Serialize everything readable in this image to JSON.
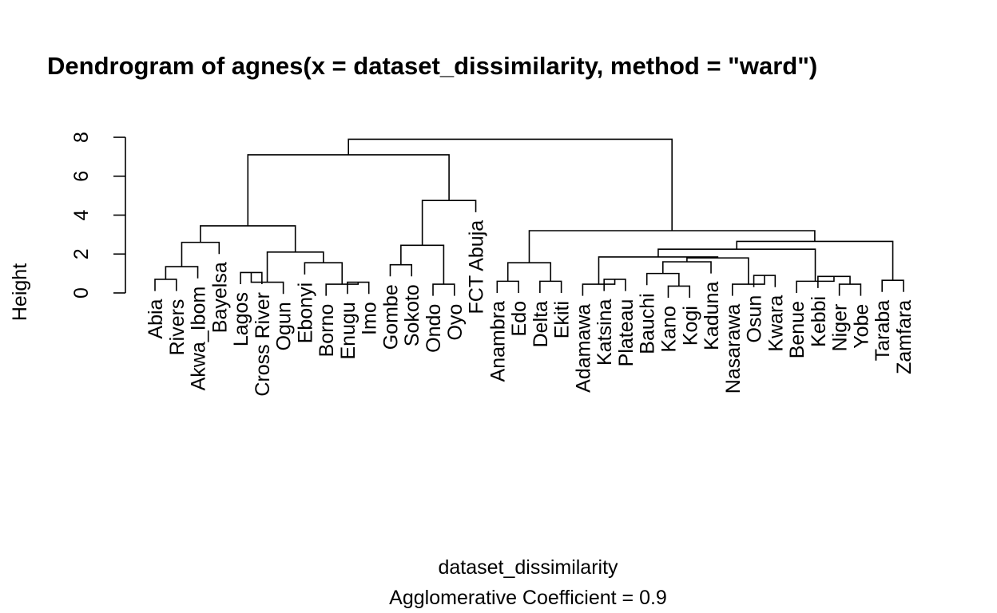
{
  "chart_data": {
    "type": "dendrogram",
    "title": "Dendrogram of  agnes(x = dataset_dissimilarity, method = \"ward\")",
    "xlabel": "dataset_dissimilarity",
    "sub": "Agglomerative Coefficient =  0.9",
    "ylabel": "Height",
    "ylim": [
      0,
      8
    ],
    "yticks": [
      "0",
      "2",
      "4",
      "6",
      "8"
    ],
    "leaves": [
      "Abia",
      "Rivers",
      "Akwa_Ibom",
      "Bayelsa",
      "Lagos",
      "Cross River",
      "Ogun",
      "Ebonyi",
      "Borno",
      "Enugu",
      "Imo",
      "Gombe",
      "Sokoto",
      "Ondo",
      "Oyo",
      "FCT Abuja",
      "Anambra",
      "Edo",
      "Delta",
      "Ekiti",
      "Adamawa",
      "Katsina",
      "Plateau",
      "Bauchi",
      "Kano",
      "Kogi",
      "Kaduna",
      "Nasarawa",
      "Osun",
      "Kwara",
      "Benue",
      "Kebbi",
      "Niger",
      "Yobe",
      "Taraba",
      "Zamfara"
    ],
    "merges": [
      {
        "a": [
          "leaf",
          0
        ],
        "b": [
          "leaf",
          1
        ],
        "h": 0.7
      },
      {
        "a": [
          "node",
          0
        ],
        "b": [
          "leaf",
          2
        ],
        "h": 1.35
      },
      {
        "a": [
          "node",
          1
        ],
        "b": [
          "leaf",
          3
        ],
        "h": 2.6
      },
      {
        "a": [
          "leaf",
          4
        ],
        "b": [
          "leaf",
          5
        ],
        "h": 1.05
      },
      {
        "a": [
          "node",
          3
        ],
        "b": [
          "leaf",
          6
        ],
        "h": 0.55
      },
      {
        "a": [
          "leaf",
          9
        ],
        "b": [
          "leaf",
          10
        ],
        "h": 0.55
      },
      {
        "a": [
          "leaf",
          8
        ],
        "b": [
          "node",
          5
        ],
        "h": 0.45
      },
      {
        "a": [
          "leaf",
          7
        ],
        "b": [
          "node",
          6
        ],
        "h": 1.55
      },
      {
        "a": [
          "node",
          4
        ],
        "b": [
          "node",
          7
        ],
        "h": 2.1
      },
      {
        "a": [
          "node",
          2
        ],
        "b": [
          "node",
          8
        ],
        "h": 3.45
      },
      {
        "a": [
          "leaf",
          11
        ],
        "b": [
          "leaf",
          12
        ],
        "h": 1.45
      },
      {
        "a": [
          "leaf",
          13
        ],
        "b": [
          "leaf",
          14
        ],
        "h": 0.45
      },
      {
        "a": [
          "node",
          10
        ],
        "b": [
          "node",
          11
        ],
        "h": 2.45
      },
      {
        "a": [
          "node",
          12
        ],
        "b": [
          "leaf",
          15
        ],
        "h": 4.75
      },
      {
        "a": [
          "node",
          9
        ],
        "b": [
          "node",
          13
        ],
        "h": 7.1
      },
      {
        "a": [
          "leaf",
          16
        ],
        "b": [
          "leaf",
          17
        ],
        "h": 0.6
      },
      {
        "a": [
          "leaf",
          18
        ],
        "b": [
          "leaf",
          19
        ],
        "h": 0.6
      },
      {
        "a": [
          "node",
          15
        ],
        "b": [
          "node",
          16
        ],
        "h": 1.55
      },
      {
        "a": [
          "leaf",
          21
        ],
        "b": [
          "leaf",
          22
        ],
        "h": 0.7
      },
      {
        "a": [
          "leaf",
          20
        ],
        "b": [
          "node",
          18
        ],
        "h": 0.45
      },
      {
        "a": [
          "leaf",
          24
        ],
        "b": [
          "leaf",
          25
        ],
        "h": 0.35
      },
      {
        "a": [
          "leaf",
          23
        ],
        "b": [
          "node",
          20
        ],
        "h": 1.0
      },
      {
        "a": [
          "node",
          21
        ],
        "b": [
          "leaf",
          26
        ],
        "h": 1.6
      },
      {
        "a": [
          "leaf",
          28
        ],
        "b": [
          "leaf",
          29
        ],
        "h": 0.9
      },
      {
        "a": [
          "leaf",
          27
        ],
        "b": [
          "node",
          23
        ],
        "h": 0.45
      },
      {
        "a": [
          "node",
          22
        ],
        "b": [
          "node",
          24
        ],
        "h": 1.8
      },
      {
        "a": [
          "node",
          19
        ],
        "b": [
          "node",
          25
        ],
        "h": 1.85
      },
      {
        "a": [
          "leaf",
          32
        ],
        "b": [
          "leaf",
          33
        ],
        "h": 0.45
      },
      {
        "a": [
          "leaf",
          31
        ],
        "b": [
          "node",
          27
        ],
        "h": 0.85
      },
      {
        "a": [
          "leaf",
          30
        ],
        "b": [
          "node",
          28
        ],
        "h": 0.6
      },
      {
        "a": [
          "node",
          26
        ],
        "b": [
          "node",
          29
        ],
        "h": 2.25
      },
      {
        "a": [
          "leaf",
          34
        ],
        "b": [
          "leaf",
          35
        ],
        "h": 0.65
      },
      {
        "a": [
          "node",
          30
        ],
        "b": [
          "node",
          31
        ],
        "h": 2.65
      },
      {
        "a": [
          "node",
          17
        ],
        "b": [
          "node",
          32
        ],
        "h": 3.2
      },
      {
        "a": [
          "node",
          14
        ],
        "b": [
          "node",
          33
        ],
        "h": 7.9
      }
    ]
  }
}
